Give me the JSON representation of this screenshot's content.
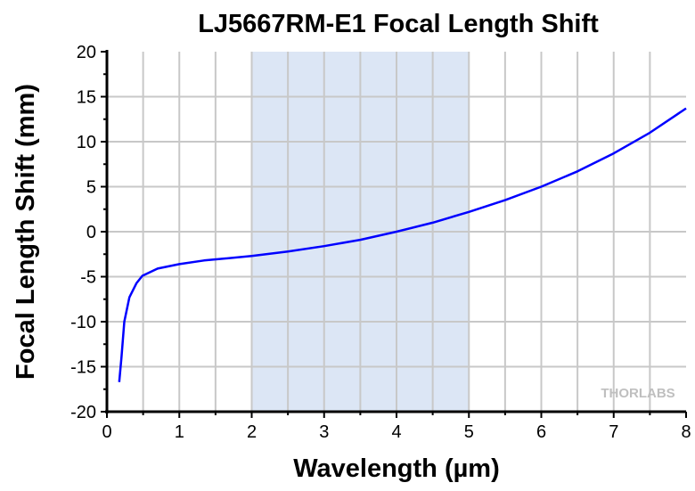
{
  "chart_data": {
    "type": "line",
    "title": "LJ5667RM-E1 Focal Length Shift",
    "xlabel": "Wavelength (µm)",
    "ylabel": "Focal Length Shift (mm)",
    "xlim": [
      0,
      8
    ],
    "ylim": [
      -20,
      20
    ],
    "xticks": [
      "0",
      "1",
      "2",
      "3",
      "4",
      "5",
      "6",
      "7",
      "8"
    ],
    "yticks": [
      "-20",
      "-15",
      "-10",
      "-5",
      "0",
      "5",
      "10",
      "15",
      "20"
    ],
    "grid": true,
    "shaded_region": [
      2,
      5
    ],
    "watermark": "THORLABS",
    "series": [
      {
        "name": "Focal Length Shift",
        "color": "#0000ff",
        "x": [
          0.17,
          0.2,
          0.24,
          0.31,
          0.41,
          0.49,
          0.7,
          1.0,
          1.34,
          2.0,
          2.5,
          3.0,
          3.5,
          4.0,
          4.5,
          5.0,
          5.5,
          6.0,
          6.5,
          7.0,
          7.5,
          8.0
        ],
        "y": [
          -16.7,
          -14,
          -10,
          -7.3,
          -5.7,
          -4.9,
          -4.1,
          -3.6,
          -3.2,
          -2.7,
          -2.2,
          -1.6,
          -0.9,
          0.0,
          1.0,
          2.2,
          3.5,
          5.0,
          6.7,
          8.7,
          11.0,
          13.7
        ]
      }
    ],
    "colors": {
      "shade": "#dce6f5",
      "grid": "#c8c8c8"
    }
  }
}
